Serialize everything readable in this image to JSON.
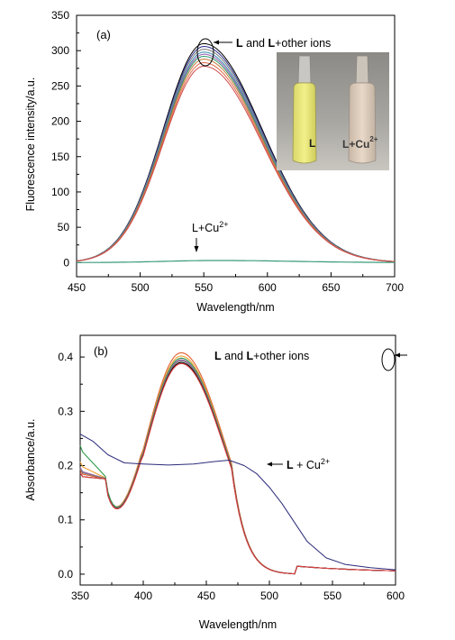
{
  "chart_data": [
    {
      "type": "line",
      "panel_label": "(a)",
      "xlabel": "Wavelength/nm",
      "ylabel": "Fluorescence intensity/a.u.",
      "xlim": [
        450,
        700
      ],
      "ylim": [
        -20,
        350
      ],
      "xticks": [
        450,
        500,
        550,
        600,
        650,
        700
      ],
      "yticks": [
        0,
        50,
        100,
        150,
        200,
        250,
        300,
        350
      ],
      "grid": false,
      "peak_x": 550,
      "width_left": 32,
      "width_right": 46,
      "series": [
        {
          "color": "#000000",
          "peak": 310
        },
        {
          "color": "#2a2a8a",
          "peak": 306
        },
        {
          "color": "#7a7a7a",
          "peak": 302
        },
        {
          "color": "#3a8fb0",
          "peak": 298
        },
        {
          "color": "#9a5fb0",
          "peak": 295
        },
        {
          "color": "#2e9a6a",
          "peak": 292
        },
        {
          "color": "#c07a3a",
          "peak": 288
        },
        {
          "color": "#e06a4a",
          "peak": 283
        },
        {
          "color": "#d04a4a",
          "peak": 278
        }
      ],
      "quench_series": {
        "color": "#3a9a7a",
        "peak": 3,
        "peak_x": 560
      },
      "annotations": {
        "group_bold": "L",
        "group_mid": " and ",
        "group_bold2": "L",
        "group_rest": "+other ions",
        "cu_text": "L+Cu",
        "cu_sup": "2+"
      },
      "inset": {
        "left_label": "L",
        "right_label": "L+Cu",
        "right_sup": "2+"
      }
    },
    {
      "type": "line",
      "panel_label": "(b)",
      "xlabel": "Wavelength/nm",
      "ylabel": "Absorbance/a.u.",
      "xlim": [
        350,
        600
      ],
      "ylim": [
        -0.02,
        0.44
      ],
      "xticks": [
        350,
        400,
        450,
        500,
        550,
        600
      ],
      "yticks": [
        0.0,
        0.1,
        0.2,
        0.3,
        0.4
      ],
      "grid": false,
      "series": [
        {
          "color": "#e06030",
          "peak": 0.408,
          "edge": 0.185
        },
        {
          "color": "#f0a030",
          "peak": 0.402,
          "edge": 0.2
        },
        {
          "color": "#2e9a4a",
          "peak": 0.398,
          "edge": 0.23
        },
        {
          "color": "#9a5fb0",
          "peak": 0.395,
          "edge": 0.19
        },
        {
          "color": "#7a7a7a",
          "peak": 0.393,
          "edge": 0.188
        },
        {
          "color": "#000000",
          "peak": 0.39,
          "edge": 0.18
        },
        {
          "color": "#e04040",
          "peak": 0.388,
          "edge": 0.18
        }
      ],
      "cu_series": {
        "color": "#2a2a7a",
        "x": [
          350,
          360,
          372,
          385,
          400,
          420,
          440,
          455,
          468,
          480,
          490,
          500,
          510,
          520,
          530,
          545,
          560,
          580,
          600
        ],
        "y": [
          0.258,
          0.245,
          0.22,
          0.205,
          0.203,
          0.201,
          0.203,
          0.207,
          0.21,
          0.2,
          0.185,
          0.16,
          0.13,
          0.095,
          0.06,
          0.03,
          0.018,
          0.012,
          0.008
        ]
      },
      "annotations": {
        "group_bold": "L",
        "group_mid": " and ",
        "group_bold2": "L",
        "group_rest": "+other ions",
        "cu_text_bold": "L",
        "cu_text": " + Cu",
        "cu_sup": "2+"
      }
    }
  ]
}
